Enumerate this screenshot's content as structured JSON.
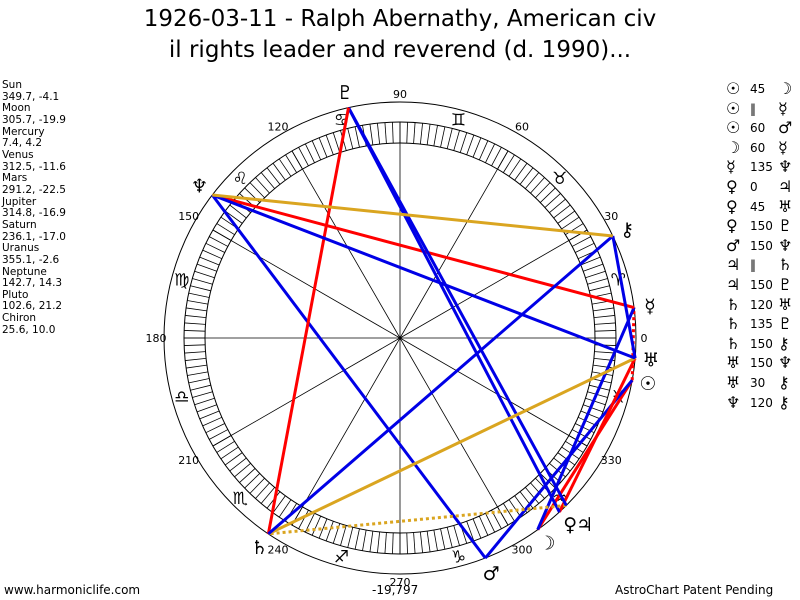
{
  "title": {
    "line1": "1926-03-11 - Ralph Abernathy, American civ",
    "line2": "il rights leader and reverend (d. 1990)..."
  },
  "planets": [
    {
      "name": "Sun",
      "glyph": "☉",
      "coords": "349.7, -4.1",
      "lon": 349.7
    },
    {
      "name": "Moon",
      "glyph": "☽",
      "coords": "305.7, -19.9",
      "lon": 305.7
    },
    {
      "name": "Mercury",
      "glyph": "☿",
      "coords": "7.4, 4.2",
      "lon": 7.4
    },
    {
      "name": "Venus",
      "glyph": "♀",
      "coords": "312.5, -11.6",
      "lon": 312.5
    },
    {
      "name": "Mars",
      "glyph": "♂",
      "coords": "291.2, -22.5",
      "lon": 291.2
    },
    {
      "name": "Jupiter",
      "glyph": "♃",
      "coords": "314.8, -16.9",
      "lon": 314.8
    },
    {
      "name": "Saturn",
      "glyph": "♄",
      "coords": "236.1, -17.0",
      "lon": 236.1
    },
    {
      "name": "Uranus",
      "glyph": "♅",
      "coords": "355.1, -2.6",
      "lon": 355.1
    },
    {
      "name": "Neptune",
      "glyph": "♆",
      "coords": "142.7, 14.3",
      "lon": 142.7
    },
    {
      "name": "Pluto",
      "glyph": "♇",
      "coords": "102.6, 21.2",
      "lon": 102.6
    },
    {
      "name": "Chiron",
      "glyph": "⚷",
      "coords": "25.6, 10.0",
      "lon": 25.6
    }
  ],
  "signs": [
    "♈",
    "♉",
    "♊",
    "♋",
    "♌",
    "♍",
    "♎",
    "♏",
    "♐",
    "♑",
    "♒",
    "♓"
  ],
  "degree_labels": [
    "0",
    "30",
    "60",
    "90",
    "120",
    "150",
    "180",
    "210",
    "240",
    "270",
    "300",
    "330"
  ],
  "colors": {
    "red": "#ff0000",
    "blue": "#0000e6",
    "gold": "#daa520"
  },
  "aspects": [
    {
      "p1": "Sun",
      "label": "45",
      "p2": "Moon",
      "color": "red",
      "style": "solid"
    },
    {
      "p1": "Sun",
      "label": "‖",
      "p2": "Mercury",
      "color": "red",
      "style": "dotted"
    },
    {
      "p1": "Sun",
      "label": "60",
      "p2": "Mars",
      "color": "blue",
      "style": "solid"
    },
    {
      "p1": "Moon",
      "label": "60",
      "p2": "Mercury",
      "color": "blue",
      "style": "solid"
    },
    {
      "p1": "Mercury",
      "label": "135",
      "p2": "Neptune",
      "color": "red",
      "style": "solid"
    },
    {
      "p1": "Venus",
      "label": "0",
      "p2": "Jupiter",
      "color": "none",
      "style": "none"
    },
    {
      "p1": "Venus",
      "label": "45",
      "p2": "Uranus",
      "color": "red",
      "style": "solid"
    },
    {
      "p1": "Venus",
      "label": "150",
      "p2": "Pluto",
      "color": "blue",
      "style": "solid"
    },
    {
      "p1": "Mars",
      "label": "150",
      "p2": "Neptune",
      "color": "blue",
      "style": "solid"
    },
    {
      "p1": "Jupiter",
      "label": "‖",
      "p2": "Saturn",
      "color": "gold",
      "style": "dotted"
    },
    {
      "p1": "Jupiter",
      "label": "150",
      "p2": "Pluto",
      "color": "blue",
      "style": "solid"
    },
    {
      "p1": "Saturn",
      "label": "120",
      "p2": "Uranus",
      "color": "gold",
      "style": "solid"
    },
    {
      "p1": "Saturn",
      "label": "135",
      "p2": "Pluto",
      "color": "red",
      "style": "solid"
    },
    {
      "p1": "Saturn",
      "label": "150",
      "p2": "Chiron",
      "color": "blue",
      "style": "solid"
    },
    {
      "p1": "Uranus",
      "label": "150",
      "p2": "Neptune",
      "color": "blue",
      "style": "solid"
    },
    {
      "p1": "Uranus",
      "label": "30",
      "p2": "Chiron",
      "color": "blue",
      "style": "solid"
    },
    {
      "p1": "Neptune",
      "label": "120",
      "p2": "Chiron",
      "color": "gold",
      "style": "solid"
    }
  ],
  "footer": {
    "site": "www.harmoniclife.com",
    "number": "-19,797",
    "patent": "AstroChart Patent Pending"
  }
}
